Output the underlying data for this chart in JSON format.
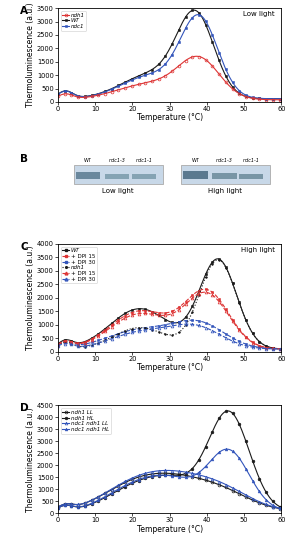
{
  "panel_A": {
    "title": "Low light",
    "ylabel": "Thermoluminescence (a.u.)",
    "xlabel": "Temperature (°C)",
    "ylim": [
      0,
      3500
    ],
    "xlim": [
      0,
      60
    ],
    "yticks": [
      0,
      500,
      1000,
      1500,
      2000,
      2500,
      3000,
      3500
    ],
    "xticks": [
      0,
      10,
      20,
      30,
      40,
      50,
      60
    ]
  },
  "panel_C": {
    "title": "High light",
    "ylabel": "Thermoluminescence (a.u.)",
    "xlabel": "Temperature (°C)",
    "ylim": [
      0,
      4000
    ],
    "xlim": [
      0,
      60
    ],
    "yticks": [
      0,
      500,
      1000,
      1500,
      2000,
      2500,
      3000,
      3500,
      4000
    ],
    "xticks": [
      0,
      10,
      20,
      30,
      40,
      50,
      60
    ]
  },
  "panel_D": {
    "ylabel": "Thermoluminescence (a.u.)",
    "xlabel": "Temperature (°C)",
    "ylim": [
      0,
      4500
    ],
    "xlim": [
      0,
      60
    ],
    "yticks": [
      0,
      500,
      1000,
      1500,
      2000,
      2500,
      3000,
      3500,
      4000,
      4500
    ],
    "xticks": [
      0,
      10,
      20,
      30,
      40,
      50,
      60
    ]
  },
  "colors": {
    "black": "#1a1a1a",
    "red": "#dd3333",
    "blue": "#3355bb"
  },
  "ms": 2.0,
  "lw": 0.8,
  "fs_label": 5.5,
  "fs_tick": 4.8,
  "fs_legend": 4.0,
  "fs_panel": 7.5
}
